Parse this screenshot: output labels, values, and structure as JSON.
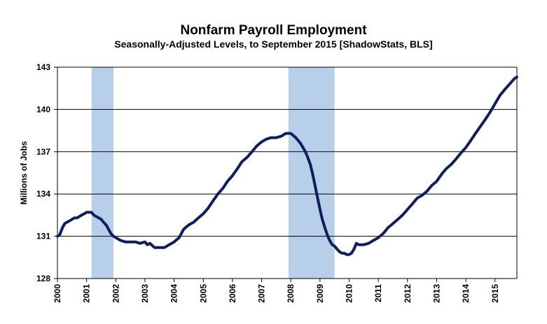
{
  "chart_data": {
    "type": "line",
    "title": "Nonfarm Payroll Employment",
    "subtitle": "Seasonally-Adjusted Levels, to September 2015 [ShadowStats, BLS]",
    "ylabel": "Millions of Jobs",
    "xlabel": "",
    "ylim": [
      128,
      143
    ],
    "yticks": [
      "128",
      "131",
      "134",
      "137",
      "140",
      "143"
    ],
    "xlim": [
      2000,
      2015.75
    ],
    "xticks": [
      "2000",
      "2001",
      "2002",
      "2003",
      "2004",
      "2005",
      "2006",
      "2007",
      "2008",
      "2009",
      "2010",
      "2011",
      "2012",
      "2013",
      "2014",
      "2015"
    ],
    "grid": true,
    "recessions": [
      [
        2001.17,
        2001.92
      ],
      [
        2007.92,
        2009.5
      ]
    ],
    "colors": {
      "line": "#0d1f5c",
      "recession": "#b8cfea",
      "grid": "#000000"
    },
    "series": [
      {
        "x": [
          2000.0,
          2000.08,
          2000.17,
          2000.25,
          2000.33,
          2000.42,
          2000.5,
          2000.58,
          2000.67,
          2000.75,
          2000.83,
          2000.92,
          2001.0,
          2001.08,
          2001.17,
          2001.25,
          2001.33,
          2001.42,
          2001.5,
          2001.58,
          2001.67,
          2001.75,
          2001.83,
          2001.92,
          2002.0,
          2002.17,
          2002.33,
          2002.5,
          2002.67,
          2002.83,
          2003.0,
          2003.08,
          2003.17,
          2003.33,
          2003.5,
          2003.58,
          2003.67,
          2003.83,
          2004.0,
          2004.17,
          2004.33,
          2004.5,
          2004.67,
          2004.83,
          2005.0,
          2005.17,
          2005.33,
          2005.5,
          2005.67,
          2005.83,
          2006.0,
          2006.17,
          2006.33,
          2006.5,
          2006.67,
          2006.83,
          2007.0,
          2007.17,
          2007.33,
          2007.5,
          2007.67,
          2007.83,
          2008.0,
          2008.17,
          2008.33,
          2008.5,
          2008.58,
          2008.67,
          2008.75,
          2008.83,
          2008.92,
          2009.0,
          2009.08,
          2009.17,
          2009.25,
          2009.33,
          2009.42,
          2009.5,
          2009.58,
          2009.67,
          2009.75,
          2009.83,
          2009.92,
          2010.0,
          2010.08,
          2010.17,
          2010.25,
          2010.33,
          2010.5,
          2010.67,
          2010.83,
          2011.0,
          2011.17,
          2011.33,
          2011.5,
          2011.67,
          2011.83,
          2012.0,
          2012.17,
          2012.33,
          2012.5,
          2012.67,
          2012.83,
          2013.0,
          2013.17,
          2013.33,
          2013.5,
          2013.67,
          2013.83,
          2014.0,
          2014.17,
          2014.33,
          2014.5,
          2014.67,
          2014.83,
          2015.0,
          2015.17,
          2015.33,
          2015.5,
          2015.67,
          2015.75
        ],
        "y": [
          131.0,
          131.1,
          131.6,
          131.9,
          132.0,
          132.1,
          132.2,
          132.3,
          132.3,
          132.4,
          132.5,
          132.6,
          132.7,
          132.7,
          132.7,
          132.5,
          132.4,
          132.3,
          132.2,
          132.0,
          131.8,
          131.5,
          131.2,
          131.0,
          130.9,
          130.7,
          130.6,
          130.6,
          130.6,
          130.5,
          130.6,
          130.4,
          130.5,
          130.2,
          130.2,
          130.2,
          130.2,
          130.4,
          130.6,
          130.9,
          131.5,
          131.8,
          132.0,
          132.3,
          132.6,
          133.0,
          133.5,
          134.0,
          134.4,
          134.9,
          135.3,
          135.8,
          136.3,
          136.6,
          137.0,
          137.4,
          137.7,
          137.9,
          138.0,
          138.0,
          138.1,
          138.3,
          138.3,
          138.0,
          137.6,
          137.0,
          136.6,
          136.1,
          135.4,
          134.6,
          133.7,
          132.9,
          132.2,
          131.6,
          131.1,
          130.7,
          130.4,
          130.3,
          130.1,
          129.9,
          129.8,
          129.8,
          129.7,
          129.7,
          129.8,
          130.1,
          130.5,
          130.4,
          130.4,
          130.5,
          130.7,
          130.9,
          131.2,
          131.6,
          131.9,
          132.2,
          132.5,
          132.9,
          133.3,
          133.7,
          133.9,
          134.2,
          134.6,
          134.9,
          135.4,
          135.8,
          136.1,
          136.5,
          136.9,
          137.3,
          137.8,
          138.3,
          138.8,
          139.3,
          139.8,
          140.4,
          141.0,
          141.4,
          141.8,
          142.2,
          142.3
        ]
      }
    ]
  }
}
